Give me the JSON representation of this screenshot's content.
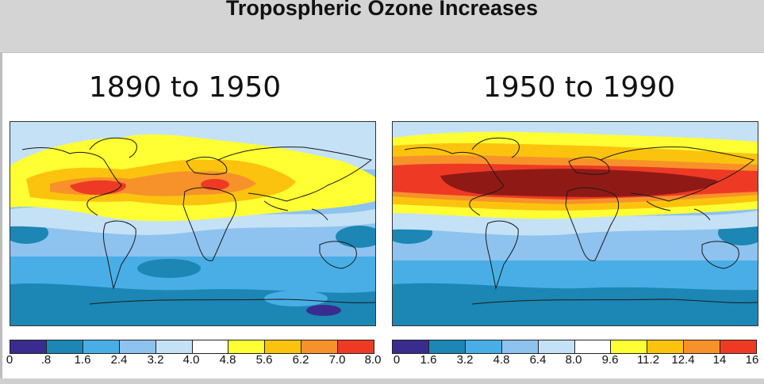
{
  "slide": {
    "title": "Tropospheric Ozone Increases"
  },
  "colors": [
    "#3a2c8e",
    "#1c86b4",
    "#49aee6",
    "#8ec2ef",
    "#c5e1f5",
    "#ffffff",
    "#ffff33",
    "#fcc30e",
    "#f7922a",
    "#ee3a24"
  ],
  "extra_colors": {
    "dark_red": "#8f1a15"
  },
  "panels": [
    {
      "title": "1890 to 1950",
      "colorbar_ticks": [
        "0",
        ".8",
        "1.6",
        "2.4",
        "3.2",
        "4.0",
        "4.8",
        "5.6",
        "6.2",
        "7.0",
        "8.0"
      ]
    },
    {
      "title": "1950 to 1990",
      "colorbar_ticks": [
        "0",
        "1.6",
        "3.2",
        "4.8",
        "6.4",
        "8.0",
        "9.6",
        "11.2",
        "12.4",
        "14",
        "16"
      ]
    }
  ]
}
